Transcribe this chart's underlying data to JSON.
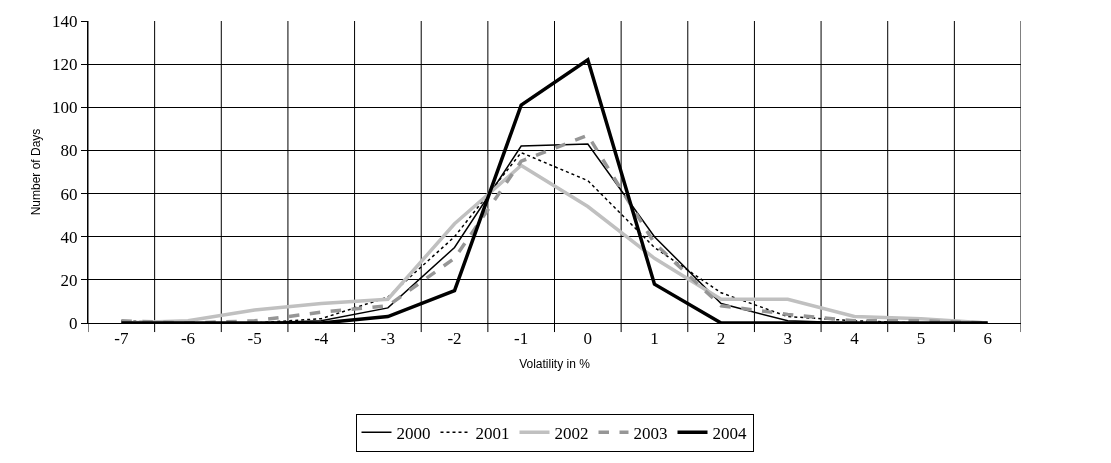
{
  "chart_data": {
    "type": "line",
    "xlabel": "Volatility in %",
    "ylabel": "Number of Days",
    "categories": [
      "-7",
      "-6",
      "-5",
      "-4",
      "-3",
      "-2",
      "-1",
      "0",
      "1",
      "2",
      "3",
      "4",
      "5",
      "6"
    ],
    "series": [
      {
        "name": "2000",
        "color": "#000000",
        "line_style": "solid",
        "values": [
          0,
          0,
          0,
          1,
          7,
          35,
          82,
          83,
          40,
          9,
          1,
          0,
          0,
          0
        ]
      },
      {
        "name": "2001",
        "color": "#000000",
        "line_style": "dotted",
        "values": [
          1,
          0,
          0,
          2,
          12,
          40,
          79,
          66,
          35,
          14,
          3,
          1,
          0,
          0
        ]
      },
      {
        "name": "2002",
        "color": "#c0c0c0",
        "line_style": "solid",
        "values": [
          0,
          1,
          6,
          9,
          11,
          46,
          73,
          54,
          30,
          11,
          11,
          3,
          2,
          0
        ]
      },
      {
        "name": "2003",
        "color": "#969696",
        "line_style": "dashed",
        "values": [
          1,
          0,
          1,
          5,
          8,
          30,
          75,
          87,
          37,
          8,
          4,
          1,
          1,
          0
        ]
      },
      {
        "name": "2004",
        "color": "#000000",
        "line_style": "solid",
        "values": [
          0,
          0,
          0,
          0,
          3,
          15,
          101,
          122,
          18,
          0,
          0,
          0,
          0,
          0
        ]
      }
    ],
    "ylim": [
      0,
      140
    ],
    "yticks": [
      0,
      20,
      40,
      60,
      80,
      100,
      120,
      140
    ],
    "grid": true,
    "legend": "bottom",
    "marker": "none"
  }
}
